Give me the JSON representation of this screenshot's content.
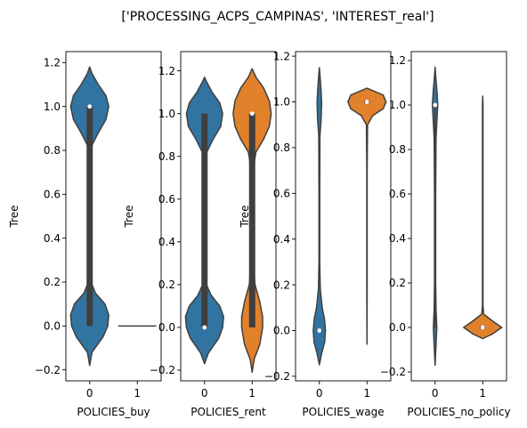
{
  "figure": {
    "suptitle": "['PROCESSING_ACPS_CAMPINAS', 'INTEREST_real']"
  },
  "colors": {
    "blue": "#3274a1",
    "orange": "#e1812c",
    "box": "#3f3f3f"
  },
  "chart_data": [
    {
      "type": "violin",
      "xlabel": "POLICIES_buy",
      "ylabel": "Tree",
      "categories": [
        "0",
        "1"
      ],
      "ylim": [
        -0.25,
        1.25
      ],
      "yticks": [
        -0.2,
        0.0,
        0.2,
        0.4,
        0.6,
        0.8,
        1.0,
        1.2
      ],
      "ytick_labels": [
        "−0.2",
        "0.0",
        "0.2",
        "0.4",
        "0.6",
        "0.8",
        "1.0",
        "1.2"
      ],
      "violins": [
        {
          "category": "0",
          "color": "#3274a1",
          "min": -0.18,
          "max": 1.18,
          "q1": 0.0,
          "median": 1.0,
          "q3": 1.0,
          "whisker_low": 0.0,
          "whisker_high": 1.0,
          "profile": [
            [
              -0.18,
              0.0
            ],
            [
              -0.12,
              0.12
            ],
            [
              -0.05,
              0.7
            ],
            [
              0.0,
              0.95
            ],
            [
              0.05,
              1.0
            ],
            [
              0.1,
              0.8
            ],
            [
              0.15,
              0.3
            ],
            [
              0.2,
              0.07
            ],
            [
              0.3,
              0.04
            ],
            [
              0.5,
              0.04
            ],
            [
              0.75,
              0.05
            ],
            [
              0.82,
              0.1
            ],
            [
              0.88,
              0.45
            ],
            [
              0.94,
              0.85
            ],
            [
              1.0,
              1.0
            ],
            [
              1.05,
              0.85
            ],
            [
              1.1,
              0.45
            ],
            [
              1.15,
              0.12
            ],
            [
              1.18,
              0.0
            ]
          ]
        },
        {
          "category": "1",
          "color": "#e1812c",
          "min": 0.0,
          "max": 0.0,
          "q1": 0.0,
          "median": 0.0,
          "q3": 0.0,
          "whisker_low": 0.0,
          "whisker_high": 0.0,
          "degenerate": true
        }
      ]
    },
    {
      "type": "violin",
      "xlabel": "POLICIES_rent",
      "ylabel": "Tree",
      "categories": [
        "0",
        "1"
      ],
      "ylim": [
        -0.25,
        1.29
      ],
      "yticks": [
        -0.2,
        0.0,
        0.2,
        0.4,
        0.6,
        0.8,
        1.0,
        1.2
      ],
      "ytick_labels": [
        "−0.2",
        "0.0",
        "0.2",
        "0.4",
        "0.6",
        "0.8",
        "1.0",
        "1.2"
      ],
      "violins": [
        {
          "category": "0",
          "color": "#3274a1",
          "min": -0.17,
          "max": 1.17,
          "q1": 0.0,
          "median": 0.0,
          "q3": 1.0,
          "whisker_low": 0.0,
          "whisker_high": 1.0,
          "profile": [
            [
              -0.17,
              0.0
            ],
            [
              -0.12,
              0.2
            ],
            [
              -0.05,
              0.75
            ],
            [
              0.0,
              0.95
            ],
            [
              0.05,
              1.0
            ],
            [
              0.1,
              0.8
            ],
            [
              0.15,
              0.35
            ],
            [
              0.2,
              0.1
            ],
            [
              0.3,
              0.05
            ],
            [
              0.5,
              0.05
            ],
            [
              0.75,
              0.06
            ],
            [
              0.82,
              0.12
            ],
            [
              0.88,
              0.45
            ],
            [
              0.94,
              0.85
            ],
            [
              1.0,
              0.95
            ],
            [
              1.05,
              0.8
            ],
            [
              1.1,
              0.4
            ],
            [
              1.15,
              0.1
            ],
            [
              1.17,
              0.0
            ]
          ]
        },
        {
          "category": "1",
          "color": "#e1812c",
          "min": -0.21,
          "max": 1.21,
          "q1": 0.0,
          "median": 1.0,
          "q3": 1.0,
          "whisker_low": 0.0,
          "whisker_high": 1.0,
          "profile": [
            [
              -0.21,
              0.0
            ],
            [
              -0.15,
              0.1
            ],
            [
              -0.08,
              0.4
            ],
            [
              0.0,
              0.55
            ],
            [
              0.05,
              0.55
            ],
            [
              0.12,
              0.4
            ],
            [
              0.2,
              0.15
            ],
            [
              0.3,
              0.06
            ],
            [
              0.5,
              0.05
            ],
            [
              0.75,
              0.07
            ],
            [
              0.82,
              0.2
            ],
            [
              0.88,
              0.6
            ],
            [
              0.94,
              0.9
            ],
            [
              1.0,
              1.0
            ],
            [
              1.06,
              0.9
            ],
            [
              1.12,
              0.6
            ],
            [
              1.17,
              0.2
            ],
            [
              1.21,
              0.0
            ]
          ]
        }
      ]
    },
    {
      "type": "violin",
      "xlabel": "POLICIES_wage",
      "ylabel": "Tree",
      "categories": [
        "0",
        "1"
      ],
      "ylim": [
        -0.22,
        1.22
      ],
      "yticks": [
        -0.2,
        0.0,
        0.2,
        0.4,
        0.6,
        0.8,
        1.0,
        1.2
      ],
      "ytick_labels": [
        "−0.2",
        "0.0",
        "0.2",
        "0.4",
        "0.6",
        "0.8",
        "1.0",
        "1.2"
      ],
      "violins": [
        {
          "category": "0",
          "color": "#3274a1",
          "min": -0.15,
          "max": 1.15,
          "q1": 0.0,
          "median": 0.0,
          "q3": 0.0,
          "whisker_low": 0.0,
          "whisker_high": 0.0,
          "profile": [
            [
              -0.15,
              0.0
            ],
            [
              -0.1,
              0.12
            ],
            [
              -0.05,
              0.28
            ],
            [
              0.0,
              0.32
            ],
            [
              0.05,
              0.27
            ],
            [
              0.1,
              0.15
            ],
            [
              0.18,
              0.05
            ],
            [
              0.3,
              0.02
            ],
            [
              0.6,
              0.02
            ],
            [
              0.85,
              0.03
            ],
            [
              0.92,
              0.09
            ],
            [
              1.0,
              0.12
            ],
            [
              1.06,
              0.08
            ],
            [
              1.12,
              0.03
            ],
            [
              1.15,
              0.0
            ]
          ]
        },
        {
          "category": "1",
          "color": "#e1812c",
          "min": -0.06,
          "max": 1.06,
          "q1": 1.0,
          "median": 1.0,
          "q3": 1.0,
          "whisker_low": 1.0,
          "whisker_high": 1.0,
          "profile": [
            [
              -0.06,
              0.0
            ],
            [
              0.2,
              0.01
            ],
            [
              0.7,
              0.01
            ],
            [
              0.9,
              0.03
            ],
            [
              0.94,
              0.3
            ],
            [
              0.97,
              0.85
            ],
            [
              1.0,
              1.0
            ],
            [
              1.03,
              0.85
            ],
            [
              1.06,
              0.0
            ]
          ]
        }
      ]
    },
    {
      "type": "violin",
      "xlabel": "POLICIES_no_policy",
      "ylabel": "",
      "categories": [
        "0",
        "1"
      ],
      "ylim": [
        -0.24,
        1.24
      ],
      "yticks": [
        -0.2,
        0.0,
        0.2,
        0.4,
        0.6,
        0.8,
        1.0,
        1.2
      ],
      "ytick_labels": [
        "−0.2",
        "0.0",
        "0.2",
        "0.4",
        "0.6",
        "0.8",
        "1.0",
        "1.2"
      ],
      "violins": [
        {
          "category": "0",
          "color": "#3274a1",
          "min": -0.17,
          "max": 1.17,
          "q1": 1.0,
          "median": 1.0,
          "q3": 1.0,
          "whisker_low": 0.0,
          "whisker_high": 1.0,
          "profile": [
            [
              -0.17,
              0.0
            ],
            [
              -0.08,
              0.05
            ],
            [
              0.0,
              0.09
            ],
            [
              0.08,
              0.05
            ],
            [
              0.2,
              0.03
            ],
            [
              0.6,
              0.03
            ],
            [
              0.85,
              0.05
            ],
            [
              0.92,
              0.09
            ],
            [
              1.0,
              0.14
            ],
            [
              1.06,
              0.1
            ],
            [
              1.12,
              0.04
            ],
            [
              1.17,
              0.0
            ]
          ]
        },
        {
          "category": "1",
          "color": "#e1812c",
          "min": -0.05,
          "max": 1.04,
          "q1": 0.0,
          "median": 0.0,
          "q3": 0.0,
          "whisker_low": 0.0,
          "whisker_high": 0.0,
          "profile": [
            [
              -0.05,
              0.0
            ],
            [
              -0.03,
              0.5
            ],
            [
              0.0,
              1.0
            ],
            [
              0.03,
              0.5
            ],
            [
              0.06,
              0.05
            ],
            [
              0.1,
              0.015
            ],
            [
              0.5,
              0.015
            ],
            [
              1.0,
              0.015
            ],
            [
              1.04,
              0.0
            ]
          ]
        }
      ]
    }
  ]
}
